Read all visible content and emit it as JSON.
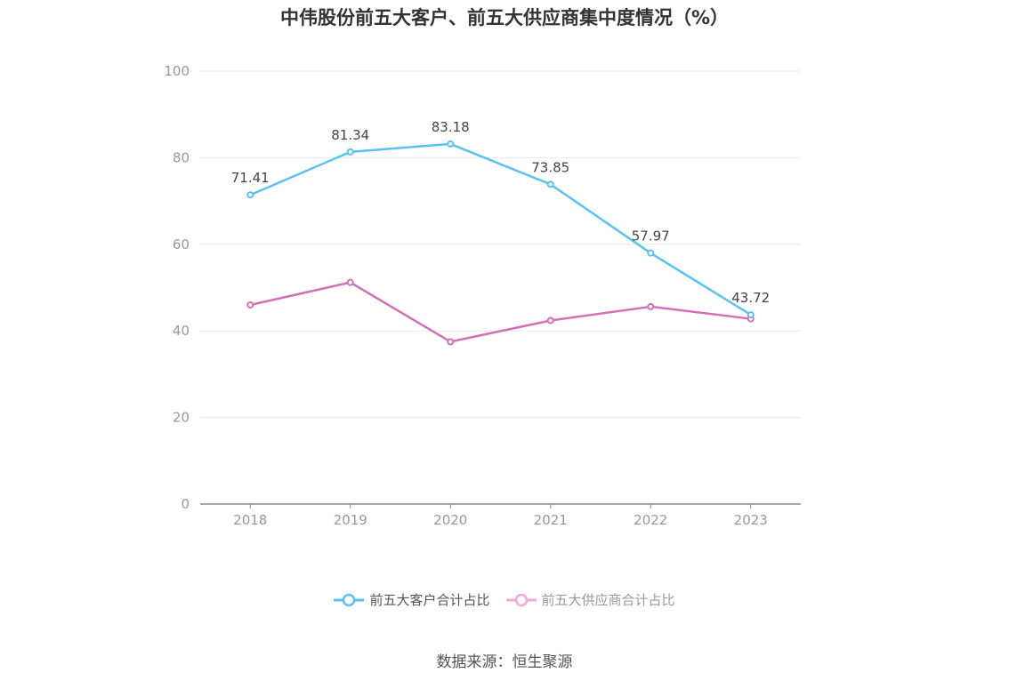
{
  "chart_data": {
    "type": "line",
    "title": "中伟股份前五大客户、前五大供应商集中度情况（%）",
    "categories": [
      "2018",
      "2019",
      "2020",
      "2021",
      "2022",
      "2023"
    ],
    "series": [
      {
        "name": "前五大客户合计占比",
        "color": "#5bc0f2",
        "values": [
          71.41,
          81.34,
          83.18,
          73.85,
          57.97,
          43.72
        ],
        "show_labels": true
      },
      {
        "name": "前五大供应商合计占比",
        "color": "#d46fb5",
        "values": [
          46.0,
          51.2,
          37.5,
          42.4,
          45.6,
          42.8
        ],
        "show_labels": false
      }
    ],
    "ylim": [
      0,
      100
    ],
    "yticks": [
      "0",
      "20",
      "40",
      "60",
      "80",
      "100"
    ],
    "xlabel": "",
    "ylabel": "",
    "grid": true,
    "legend": "bottom-center"
  },
  "legend": {
    "items": [
      {
        "label": "前五大客户合计占比",
        "color": "#5bc0f2"
      },
      {
        "label": "前五大供应商合计占比",
        "color": "#f0a8d8"
      }
    ]
  },
  "source": "数据来源：恒生聚源"
}
